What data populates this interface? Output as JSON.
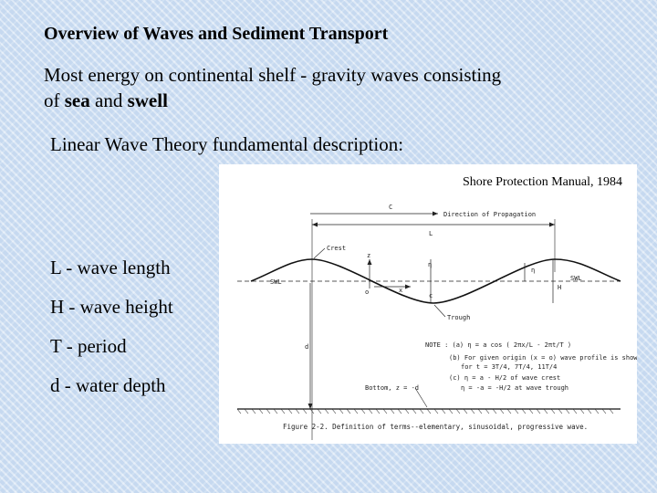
{
  "slide": {
    "title": "Overview of Waves and Sediment Transport",
    "intro": {
      "line1": "Most energy on continental shelf - gravity waves consisting",
      "line2_prefix": "of ",
      "sea": "sea",
      "and": " and ",
      "swell": "swell"
    },
    "subheading": "Linear Wave Theory fundamental description:",
    "definitions": [
      "L - wave length",
      "H - wave height",
      "T - period",
      "d - water depth"
    ]
  },
  "figure": {
    "source": "Shore Protection Manual, 1984",
    "labels": {
      "c_top": "C",
      "direction": "Direction of Propagation",
      "L": "L",
      "crest": "Crest",
      "swl_left": "SWL",
      "swl_right": "SWL",
      "z": "z",
      "eta_axis": "η",
      "eta_right": "η",
      "origin": "o",
      "x": "x",
      "c_mid": "c",
      "H": "H",
      "trough": "Trough",
      "d": "d",
      "bottom": "Bottom, z = -d"
    },
    "notes": [
      "NOTE : (a)  η = a cos ( 2πx/L - 2πt/T )",
      "(b) For given origin (x = o) wave profile is shown",
      "for t = 3T/4, 7T/4, 11T/4",
      "(c)  η = a - H/2 of wave crest",
      "η = -a = -H/2 at wave trough"
    ],
    "caption": "Figure 2-2.  Definition of terms--elementary, sinusoidal, progressive wave."
  }
}
